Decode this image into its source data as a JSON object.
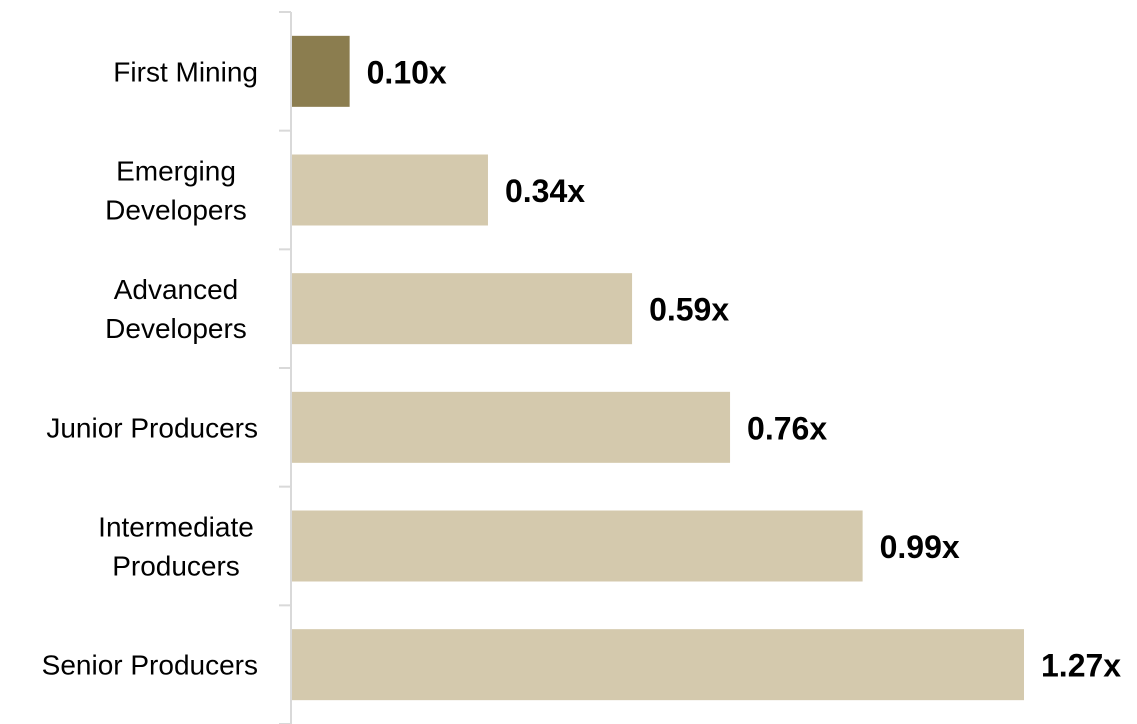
{
  "chart_data": {
    "type": "bar",
    "orientation": "horizontal",
    "categories": [
      [
        "First Mining"
      ],
      [
        "Emerging",
        "Developers"
      ],
      [
        "Advanced",
        "Developers"
      ],
      [
        "Junior Producers"
      ],
      [
        "Intermediate",
        "Producers"
      ],
      [
        "Senior Producers"
      ]
    ],
    "values": [
      0.1,
      0.34,
      0.59,
      0.76,
      0.99,
      1.27
    ],
    "data_labels": [
      "0.10x",
      "0.34x",
      "0.59x",
      "0.76x",
      "0.99x",
      "1.27x"
    ],
    "xlim": [
      0,
      1.27
    ],
    "grid": false,
    "legend": "none",
    "colors": {
      "highlight": "#8b7d4f",
      "default": "#d4c9ad",
      "axis": "#d9d9d9"
    },
    "highlight_index": 0
  }
}
